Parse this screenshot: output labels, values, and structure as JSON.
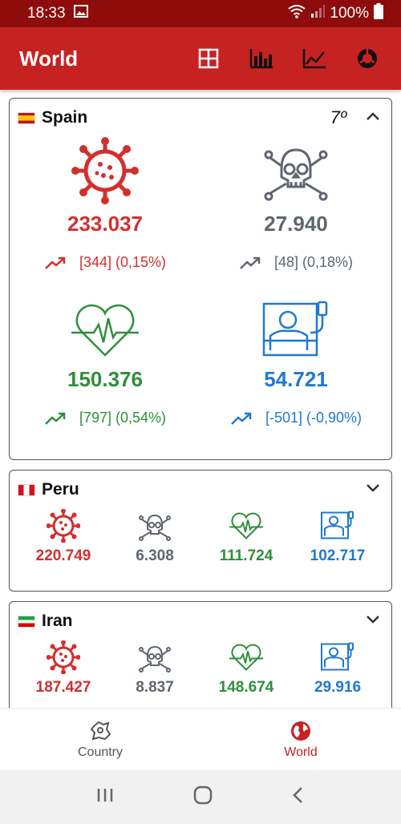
{
  "status": {
    "time": "18:33",
    "battery": "100%"
  },
  "appbar": {
    "title": "World"
  },
  "colors": {
    "cases": "#d32f2f",
    "deaths": "#5f6670",
    "recovered": "#2f8f3a",
    "active": "#1f78d1"
  },
  "countries": [
    {
      "name": "Spain",
      "rank": "7º",
      "expanded": true,
      "cases": {
        "value": "233.037",
        "change": "[344] (0,15%)"
      },
      "deaths": {
        "value": "27.940",
        "change": "[48] (0,18%)"
      },
      "recovered": {
        "value": "150.376",
        "change": "[797] (0,54%)"
      },
      "active": {
        "value": "54.721",
        "change": "[-501] (-0,90%)"
      }
    },
    {
      "name": "Peru",
      "cases": "220.749",
      "deaths": "6.308",
      "recovered": "111.724",
      "active": "102.717"
    },
    {
      "name": "Iran",
      "cases": "187.427",
      "deaths": "8.837",
      "recovered": "148.674",
      "active": "29.916"
    }
  ],
  "bottomnav": {
    "country": "Country",
    "world": "World"
  }
}
